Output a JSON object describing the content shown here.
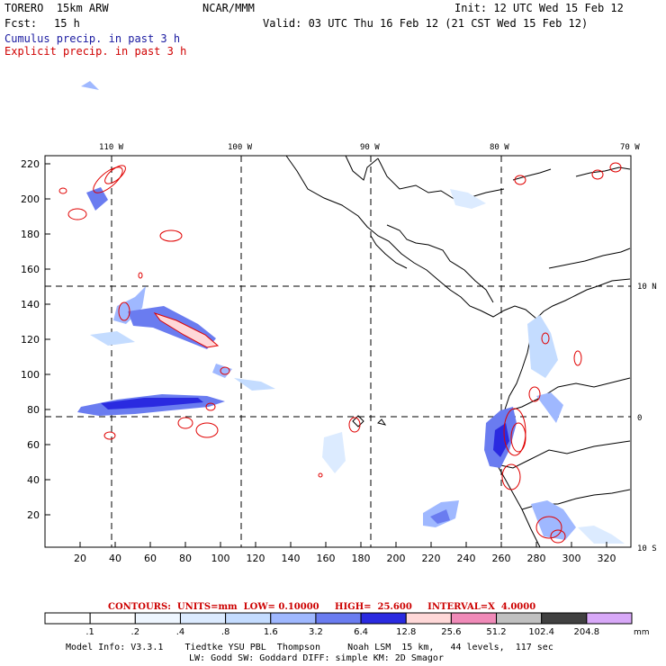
{
  "header": {
    "model": "TORERO  15km ARW",
    "org": "NCAR/MMM",
    "init": "Init: 12 UTC Wed 15 Feb 12",
    "fcst_label": "Fcst:",
    "fcst_value": "15 h",
    "valid": "Valid: 03 UTC Thu 16 Feb 12 (21 CST Wed 15 Feb 12)",
    "cumulus": "Cumulus precip. in past 3 h",
    "explicit": "Explicit precip. in past 3 h"
  },
  "map": {
    "lon_labels": [
      "110 W",
      "100 W",
      "90 W",
      "80 W",
      "70 W"
    ],
    "lat_labels": [
      "10 N",
      "0",
      "10 S"
    ],
    "y_ticks": [
      "220",
      "200",
      "180",
      "160",
      "140",
      "120",
      "100",
      "80",
      "60",
      "40",
      "20"
    ],
    "x_ticks": [
      "20",
      "40",
      "60",
      "80",
      "100",
      "120",
      "140",
      "160",
      "180",
      "200",
      "220",
      "240",
      "260",
      "280",
      "300",
      "320"
    ]
  },
  "contours_line": {
    "text": "CONTOURS:  UNITS=mm  LOW= 0.10000     HIGH=  25.600     INTERVAL=X  4.0000"
  },
  "colorbar": {
    "colors": [
      "#ffffff",
      "#ffffff",
      "#eef6ff",
      "#dcebff",
      "#c4dcff",
      "#9fb8ff",
      "#6a7cf0",
      "#2a2ae0",
      "#ffd8d8",
      "#f08ab8",
      "#c0c0c0",
      "#404040",
      "#d8a8f8"
    ],
    "labels": [
      ".1",
      ".2",
      ".4",
      ".8",
      "1.6",
      "3.2",
      "6.4",
      "12.8",
      "25.6",
      "51.2",
      "102.4",
      "204.8"
    ],
    "unit": "mm"
  },
  "footer": {
    "line1": "Model Info: V3.3.1    Tiedtke YSU PBL  Thompson     Noah LSM  15 km,   44 levels,  117 sec",
    "line2": "LW: Godd SW: Goddard DIFF: simple KM: 2D Smagor"
  }
}
